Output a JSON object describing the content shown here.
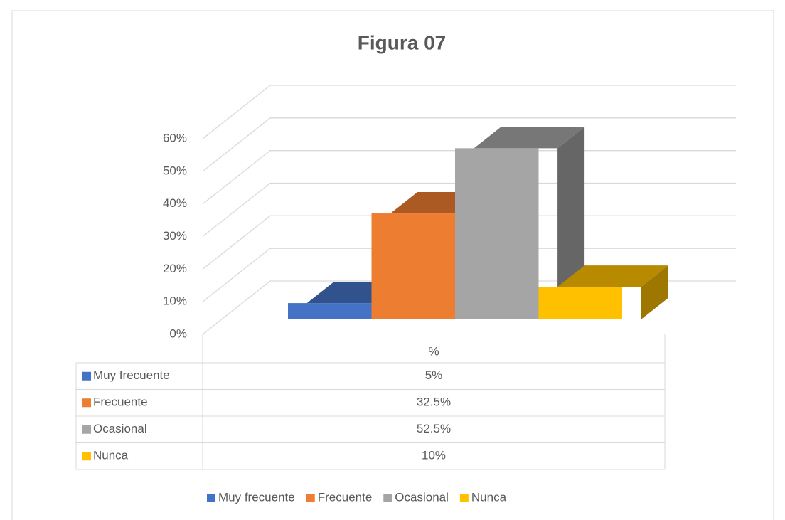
{
  "chart_data": {
    "type": "bar",
    "title": "Figura 07",
    "categories": [
      "%"
    ],
    "series": [
      {
        "name": "Muy frecuente",
        "color": "#4472c4",
        "values": [
          5
        ],
        "value_labels": [
          "5%"
        ]
      },
      {
        "name": "Frecuente",
        "color": "#ed7d31",
        "values": [
          32.5
        ],
        "value_labels": [
          "32.5%"
        ]
      },
      {
        "name": "Ocasional",
        "color": "#a5a5a5",
        "values": [
          52.5
        ],
        "value_labels": [
          "52.5%"
        ]
      },
      {
        "name": "Nunca",
        "color": "#ffc000",
        "values": [
          10
        ],
        "value_labels": [
          "10%"
        ]
      }
    ],
    "ylim": [
      0,
      60
    ],
    "yticks": [
      {
        "value": 0,
        "label": "0%"
      },
      {
        "value": 10,
        "label": "10%"
      },
      {
        "value": 20,
        "label": "20%"
      },
      {
        "value": 30,
        "label": "30%"
      },
      {
        "value": 40,
        "label": "40%"
      },
      {
        "value": 50,
        "label": "50%"
      },
      {
        "value": 60,
        "label": "60%"
      }
    ],
    "grid": true,
    "legend": "bottom",
    "data_table": true
  }
}
